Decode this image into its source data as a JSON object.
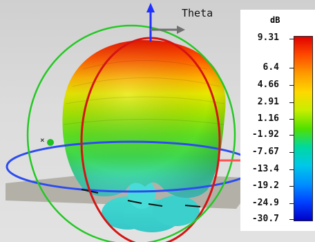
{
  "viewport": {
    "axis_label": "Theta"
  },
  "legend": {
    "unit": "dB",
    "ticks": [
      "9.31",
      "6.4",
      "4.66",
      "2.91",
      "1.16",
      "-1.92",
      "-7.67",
      "-13.4",
      "-19.2",
      "-24.9",
      "-30.7"
    ],
    "colors": [
      "#e00000",
      "#ff4a00",
      "#ff9a00",
      "#ffd800",
      "#c8ee00",
      "#50e000",
      "#00d8a0",
      "#00c8e8",
      "#0090ff",
      "#0040ff",
      "#0000c8"
    ]
  }
}
